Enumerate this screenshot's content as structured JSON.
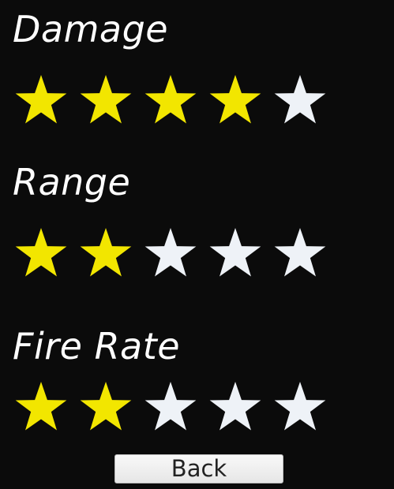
{
  "colors": {
    "background": "#0b0b0b",
    "star_filled": "#f2e600",
    "star_empty": "#eef2f7",
    "label": "#ffffff"
  },
  "stats": [
    {
      "key": "damage",
      "label": "Damage",
      "rating": 4,
      "max": 5
    },
    {
      "key": "range",
      "label": "Range",
      "rating": 2,
      "max": 5
    },
    {
      "key": "fire_rate",
      "label": "Fire Rate",
      "rating": 2,
      "max": 5
    }
  ],
  "back_button": {
    "label": "Back",
    "icon": "none"
  },
  "star_icon": "star-icon"
}
